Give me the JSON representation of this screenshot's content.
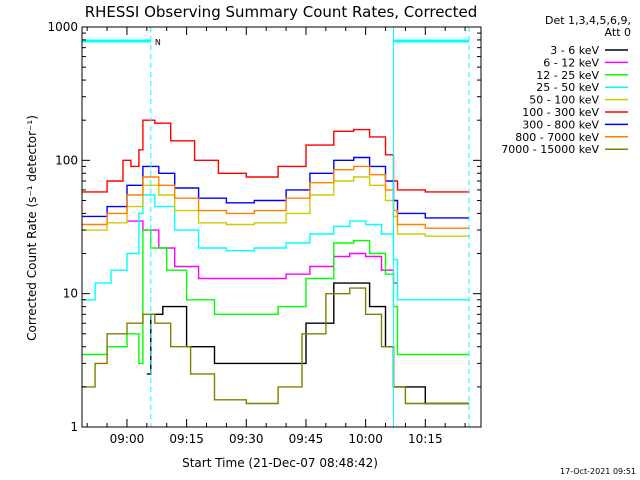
{
  "chart_data": {
    "type": "line",
    "title": "RHESSI Observing Summary Count Rates, Corrected",
    "xlabel": "Start Time (21-Dec-07 08:48:42)",
    "ylabel": "Corrected Count Rate (s⁻¹ detector⁻¹)",
    "y_scale": "log",
    "ylim": [
      1,
      1000
    ],
    "xlim": [
      "08:48:42",
      "10:29:00"
    ],
    "xticks": [
      "09:00",
      "09:15",
      "09:30",
      "09:45",
      "10:00",
      "10:15"
    ],
    "yticks": [
      "1",
      "10",
      "100",
      "1000"
    ],
    "legend_header": [
      "Det 1,3,4,5,6,9,",
      "Att 0"
    ],
    "legend_position": "right",
    "footer_timestamp": "17-Oct-2021 09:51",
    "flags": [
      {
        "label": "N",
        "start": "08:48:42",
        "end": "09:06",
        "color": "#00ffff"
      },
      {
        "label": "",
        "start": "10:07",
        "end": "10:26",
        "color": "#00ffff"
      }
    ],
    "vertical_markers": [
      {
        "time": "09:06",
        "color": "#00ffff",
        "style": "dashed"
      },
      {
        "time": "10:07",
        "color": "#00ffff",
        "style": "solid"
      },
      {
        "time": "10:26",
        "color": "#00ffff",
        "style": "dashed"
      }
    ],
    "series": [
      {
        "name": "3 - 6 keV",
        "color": "#000000",
        "points": [
          [
            "09:05",
            2.5
          ],
          [
            "09:06",
            7
          ],
          [
            "09:09",
            8
          ],
          [
            "09:15",
            4
          ],
          [
            "09:22",
            3
          ],
          [
            "09:30",
            3
          ],
          [
            "09:38",
            3
          ],
          [
            "09:45",
            6
          ],
          [
            "09:52",
            12
          ],
          [
            "09:57",
            12
          ],
          [
            "10:01",
            8
          ],
          [
            "10:05",
            4
          ],
          [
            "10:07",
            2
          ],
          [
            "10:15",
            1.5
          ],
          [
            "10:26",
            1.5
          ]
        ]
      },
      {
        "name": "6 - 12 keV",
        "color": "#ff00ff",
        "points": [
          [
            "09:00",
            35
          ],
          [
            "09:04",
            30
          ],
          [
            "09:08",
            22
          ],
          [
            "09:12",
            16
          ],
          [
            "09:18",
            13
          ],
          [
            "09:25",
            13
          ],
          [
            "09:32",
            13
          ],
          [
            "09:40",
            14
          ],
          [
            "09:46",
            16
          ],
          [
            "09:52",
            19
          ],
          [
            "09:56",
            20
          ],
          [
            "10:00",
            19
          ],
          [
            "10:04",
            15
          ],
          [
            "10:07",
            12
          ],
          [
            "10:08",
            12
          ]
        ]
      },
      {
        "name": "12 - 25 keV",
        "color": "#00ff00",
        "points": [
          [
            "08:48:42",
            3.5
          ],
          [
            "08:55",
            4
          ],
          [
            "09:00",
            5
          ],
          [
            "09:03",
            3
          ],
          [
            "09:04",
            30
          ],
          [
            "09:06",
            22
          ],
          [
            "09:10",
            15
          ],
          [
            "09:15",
            9
          ],
          [
            "09:22",
            7
          ],
          [
            "09:30",
            7
          ],
          [
            "09:38",
            8
          ],
          [
            "09:45",
            13
          ],
          [
            "09:52",
            24
          ],
          [
            "09:57",
            25
          ],
          [
            "10:01",
            20
          ],
          [
            "10:05",
            14
          ],
          [
            "10:07",
            8
          ],
          [
            "10:08",
            3.5
          ],
          [
            "10:15",
            3.5
          ],
          [
            "10:26",
            3.5
          ]
        ]
      },
      {
        "name": "25 - 50 keV",
        "color": "#00ffff",
        "points": [
          [
            "08:48:42",
            9
          ],
          [
            "08:52",
            12
          ],
          [
            "08:56",
            15
          ],
          [
            "09:00",
            20
          ],
          [
            "09:03",
            40
          ],
          [
            "09:04",
            55
          ],
          [
            "09:07",
            45
          ],
          [
            "09:12",
            30
          ],
          [
            "09:18",
            22
          ],
          [
            "09:25",
            21
          ],
          [
            "09:32",
            22
          ],
          [
            "09:40",
            24
          ],
          [
            "09:46",
            28
          ],
          [
            "09:52",
            32
          ],
          [
            "09:56",
            35
          ],
          [
            "10:00",
            33
          ],
          [
            "10:04",
            28
          ],
          [
            "10:07",
            18
          ],
          [
            "10:08",
            9
          ],
          [
            "10:15",
            9
          ],
          [
            "10:26",
            9
          ]
        ]
      },
      {
        "name": "50 - 100 keV",
        "color": "#cccc00",
        "points": [
          [
            "08:48:42",
            30
          ],
          [
            "08:55",
            34
          ],
          [
            "09:00",
            45
          ],
          [
            "09:04",
            65
          ],
          [
            "09:08",
            55
          ],
          [
            "09:12",
            42
          ],
          [
            "09:18",
            34
          ],
          [
            "09:25",
            33
          ],
          [
            "09:32",
            34
          ],
          [
            "09:40",
            40
          ],
          [
            "09:46",
            55
          ],
          [
            "09:52",
            70
          ],
          [
            "09:57",
            75
          ],
          [
            "10:01",
            65
          ],
          [
            "10:05",
            50
          ],
          [
            "10:07",
            38
          ],
          [
            "10:08",
            28
          ],
          [
            "10:15",
            27
          ],
          [
            "10:26",
            27
          ]
        ]
      },
      {
        "name": "100 - 300 keV",
        "color": "#ff0000",
        "points": [
          [
            "08:48:42",
            58
          ],
          [
            "08:55",
            70
          ],
          [
            "08:59",
            100
          ],
          [
            "09:01",
            90
          ],
          [
            "09:03",
            120
          ],
          [
            "09:04",
            200
          ],
          [
            "09:07",
            190
          ],
          [
            "09:11",
            140
          ],
          [
            "09:17",
            100
          ],
          [
            "09:23",
            80
          ],
          [
            "09:30",
            75
          ],
          [
            "09:38",
            90
          ],
          [
            "09:45",
            130
          ],
          [
            "09:52",
            165
          ],
          [
            "09:57",
            170
          ],
          [
            "10:01",
            150
          ],
          [
            "10:05",
            110
          ],
          [
            "10:07",
            70
          ],
          [
            "10:08",
            60
          ],
          [
            "10:15",
            58
          ],
          [
            "10:26",
            58
          ]
        ]
      },
      {
        "name": "300 - 800 keV",
        "color": "#0000ff",
        "points": [
          [
            "08:48:42",
            38
          ],
          [
            "08:55",
            45
          ],
          [
            "09:00",
            65
          ],
          [
            "09:04",
            90
          ],
          [
            "09:08",
            80
          ],
          [
            "09:12",
            62
          ],
          [
            "09:18",
            52
          ],
          [
            "09:25",
            48
          ],
          [
            "09:32",
            50
          ],
          [
            "09:40",
            60
          ],
          [
            "09:46",
            80
          ],
          [
            "09:52",
            100
          ],
          [
            "09:57",
            105
          ],
          [
            "10:01",
            90
          ],
          [
            "10:05",
            70
          ],
          [
            "10:07",
            50
          ],
          [
            "10:08",
            40
          ],
          [
            "10:15",
            37
          ],
          [
            "10:26",
            37
          ]
        ]
      },
      {
        "name": "800 - 7000 keV",
        "color": "#ff8000",
        "points": [
          [
            "08:48:42",
            33
          ],
          [
            "08:55",
            40
          ],
          [
            "09:00",
            55
          ],
          [
            "09:04",
            75
          ],
          [
            "09:08",
            65
          ],
          [
            "09:12",
            52
          ],
          [
            "09:18",
            42
          ],
          [
            "09:25",
            40
          ],
          [
            "09:32",
            42
          ],
          [
            "09:40",
            52
          ],
          [
            "09:46",
            68
          ],
          [
            "09:52",
            85
          ],
          [
            "09:57",
            90
          ],
          [
            "10:01",
            78
          ],
          [
            "10:05",
            60
          ],
          [
            "10:07",
            42
          ],
          [
            "10:08",
            33
          ],
          [
            "10:15",
            31
          ],
          [
            "10:26",
            31
          ]
        ]
      },
      {
        "name": "7000 - 15000 keV",
        "color": "#808000",
        "points": [
          [
            "08:48:42",
            2
          ],
          [
            "08:52",
            3
          ],
          [
            "08:55",
            5
          ],
          [
            "09:00",
            6
          ],
          [
            "09:04",
            7
          ],
          [
            "09:07",
            6
          ],
          [
            "09:11",
            4
          ],
          [
            "09:16",
            2.5
          ],
          [
            "09:22",
            1.6
          ],
          [
            "09:30",
            1.5
          ],
          [
            "09:38",
            2
          ],
          [
            "09:44",
            5
          ],
          [
            "09:50",
            10
          ],
          [
            "09:56",
            11
          ],
          [
            "10:00",
            7
          ],
          [
            "10:04",
            4
          ],
          [
            "10:07",
            2
          ],
          [
            "10:10",
            1.5
          ],
          [
            "10:15",
            1.5
          ],
          [
            "10:26",
            1.5
          ]
        ]
      }
    ]
  }
}
